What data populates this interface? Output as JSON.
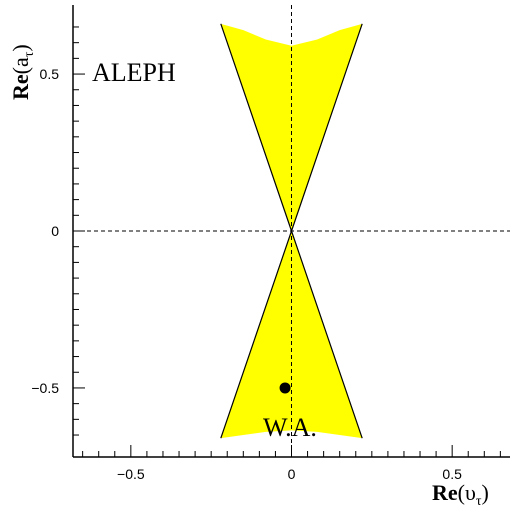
{
  "chart_data": {
    "type": "area",
    "experiment_label": "ALEPH",
    "world_average_label": "W.A.",
    "xlabel": {
      "main": "Re",
      "open": "(",
      "symbol": "υ",
      "sub": "τ",
      "close": ")"
    },
    "ylabel": {
      "main": "Re",
      "open": "(",
      "symbol": "a",
      "sub": "τ",
      "close": ")"
    },
    "xlim": [
      -0.68,
      0.68
    ],
    "ylim": [
      -0.72,
      0.72
    ],
    "xticks": [
      {
        "value": -0.5,
        "label": "−0.5"
      },
      {
        "value": 0,
        "label": "0"
      },
      {
        "value": 0.5,
        "label": "0.5"
      }
    ],
    "yticks": [
      {
        "value": 0.5,
        "label": "0.5"
      },
      {
        "value": 0,
        "label": "0"
      },
      {
        "value": -0.5,
        "label": "−0.5"
      }
    ],
    "reference_lines": {
      "x": 0,
      "y": 0,
      "style": "dashed"
    },
    "allowed_region": {
      "fill": "#ffff00",
      "upper_outer_left": [
        [
          -0.22,
          0.66
        ],
        [
          0,
          0
        ]
      ],
      "upper_outer_right": [
        [
          0.22,
          0.66
        ],
        [
          0,
          0
        ]
      ],
      "upper_top_curve": [
        [
          -0.22,
          0.66
        ],
        [
          -0.15,
          0.64
        ],
        [
          -0.08,
          0.61
        ],
        [
          0,
          0.59
        ],
        [
          0.08,
          0.61
        ],
        [
          0.15,
          0.64
        ],
        [
          0.22,
          0.66
        ]
      ],
      "lower_outer_left": [
        [
          -0.22,
          -0.66
        ],
        [
          0,
          0
        ]
      ],
      "lower_outer_right": [
        [
          0.22,
          -0.66
        ],
        [
          0,
          0
        ]
      ],
      "lower_bottom_curve": [
        [
          -0.22,
          -0.66
        ],
        [
          -0.15,
          -0.65
        ],
        [
          -0.08,
          -0.64
        ],
        [
          0,
          -0.635
        ],
        [
          0.08,
          -0.64
        ],
        [
          0.15,
          -0.65
        ],
        [
          0.22,
          -0.66
        ]
      ]
    },
    "world_average_point": {
      "x": -0.02,
      "y": -0.5
    },
    "colors": {
      "band": "#ffff00",
      "outline": "#000000",
      "point": "#000000"
    }
  }
}
